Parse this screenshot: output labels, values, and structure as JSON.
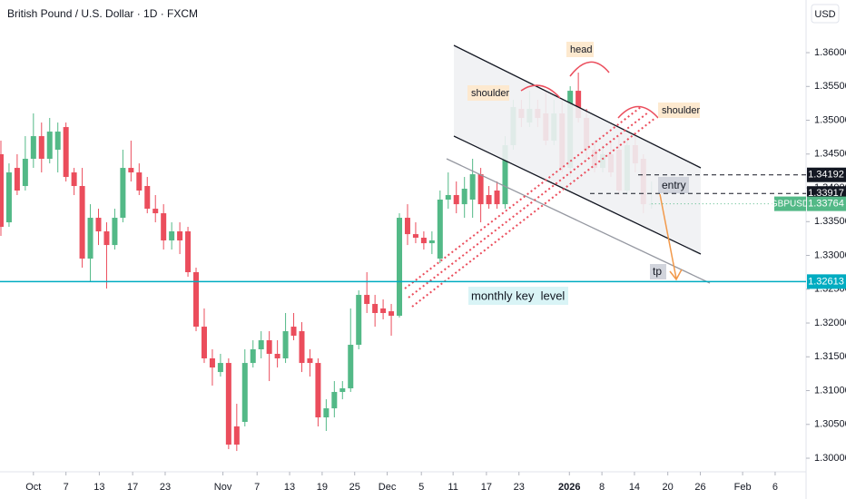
{
  "chart_data": {
    "type": "candlestick",
    "title": "British Pound / U.S. Dollar · 1D · FXCM",
    "currency": "USD",
    "symbol": "GBPUSD",
    "up_color": "#53b987",
    "down_color": "#eb4d5c",
    "ohlc": [
      [
        1.34497,
        1.34698,
        1.33289,
        1.33423
      ],
      [
        1.3349,
        1.34362,
        1.33423,
        1.34228
      ],
      [
        1.34295,
        1.34497,
        1.33893,
        1.3396
      ],
      [
        1.34027,
        1.34765,
        1.3396,
        1.3443
      ],
      [
        1.3443,
        1.35101,
        1.34295,
        1.34765
      ],
      [
        1.34765,
        1.34966,
        1.34228,
        1.3443
      ],
      [
        1.3443,
        1.35034,
        1.34362,
        1.34832
      ],
      [
        1.34564,
        1.34966,
        1.34228,
        1.34832
      ],
      [
        1.34899,
        1.34966,
        1.34094,
        1.34161
      ],
      [
        1.34228,
        1.34295,
        1.33893,
        1.34027
      ],
      [
        1.34027,
        1.34295,
        1.32819,
        1.32953
      ],
      [
        1.32953,
        1.33758,
        1.32617,
        1.33557
      ],
      [
        1.33557,
        1.33691,
        1.33154,
        1.33356
      ],
      [
        1.33356,
        1.3349,
        1.3251,
        1.33154
      ],
      [
        1.33154,
        1.33691,
        1.33087,
        1.33557
      ],
      [
        1.33557,
        1.34564,
        1.3349,
        1.34295
      ],
      [
        1.34295,
        1.34698,
        1.34094,
        1.34228
      ],
      [
        1.34228,
        1.34362,
        1.33893,
        1.3396
      ],
      [
        1.34027,
        1.34161,
        1.33624,
        1.33691
      ],
      [
        1.33691,
        1.33893,
        1.3349,
        1.33624
      ],
      [
        1.33624,
        1.33758,
        1.33087,
        1.33222
      ],
      [
        1.33222,
        1.3349,
        1.33087,
        1.33356
      ],
      [
        1.33356,
        1.3349,
        1.3302,
        1.33222
      ],
      [
        1.33356,
        1.33423,
        1.32685,
        1.32752
      ],
      [
        1.32752,
        1.32819,
        1.31879,
        1.31946
      ],
      [
        1.31946,
        1.32215,
        1.31409,
        1.31477
      ],
      [
        1.31477,
        1.31611,
        1.31074,
        1.31342
      ],
      [
        1.31275,
        1.31544,
        1.31208,
        1.31409
      ],
      [
        1.31409,
        1.31477,
        1.30134,
        1.30201
      ],
      [
        1.3047,
        1.30805,
        1.30107,
        1.30201
      ],
      [
        1.30537,
        1.31611,
        1.3047,
        1.31409
      ],
      [
        1.31409,
        1.31745,
        1.31342,
        1.31611
      ],
      [
        1.31611,
        1.31879,
        1.31477,
        1.31745
      ],
      [
        1.31745,
        1.31879,
        1.31141,
        1.31544
      ],
      [
        1.31544,
        1.31745,
        1.31342,
        1.31477
      ],
      [
        1.31477,
        1.32148,
        1.31409,
        1.31879
      ],
      [
        1.31946,
        1.32148,
        1.31745,
        1.31812
      ],
      [
        1.31879,
        1.32013,
        1.31275,
        1.31409
      ],
      [
        1.31477,
        1.31611,
        1.31208,
        1.31409
      ],
      [
        1.31409,
        1.31477,
        1.3047,
        1.30604
      ],
      [
        1.30604,
        1.30872,
        1.30403,
        1.30738
      ],
      [
        1.30738,
        1.31141,
        1.30604,
        1.3098
      ],
      [
        1.3098,
        1.31141,
        1.30872,
        1.31034
      ],
      [
        1.31034,
        1.32215,
        1.3098,
        1.31678
      ],
      [
        1.31678,
        1.32483,
        1.31611,
        1.32416
      ],
      [
        1.32416,
        1.32752,
        1.32148,
        1.32282
      ],
      [
        1.32282,
        1.32416,
        1.31946,
        1.32148
      ],
      [
        1.32215,
        1.32349,
        1.32054,
        1.32148
      ],
      [
        1.32174,
        1.32282,
        1.31812,
        1.32107
      ],
      [
        1.32107,
        1.33624,
        1.32081,
        1.33557
      ],
      [
        1.33557,
        1.33758,
        1.33154,
        1.33315
      ],
      [
        1.33315,
        1.3349,
        1.33181,
        1.33262
      ],
      [
        1.33262,
        1.33356,
        1.33087,
        1.33181
      ],
      [
        1.33181,
        1.33356,
        1.3302,
        1.33222
      ],
      [
        1.32953,
        1.3396,
        1.32886,
        1.33826
      ],
      [
        1.33826,
        1.34228,
        1.33691,
        1.33893
      ],
      [
        1.33893,
        1.34094,
        1.33624,
        1.33758
      ],
      [
        1.33758,
        1.34161,
        1.33557,
        1.33987
      ],
      [
        1.33826,
        1.3443,
        1.33557,
        1.34201
      ],
      [
        1.34201,
        1.34295,
        1.3349,
        1.33758
      ],
      [
        1.33893,
        1.34027,
        1.33691,
        1.33758
      ],
      [
        1.3396,
        1.34094,
        1.33691,
        1.33758
      ],
      [
        1.33758,
        1.34765,
        1.33691,
        1.34631
      ],
      [
        1.34631,
        1.35302,
        1.34564,
        1.35195
      ],
      [
        1.35168,
        1.35302,
        1.34899,
        1.35034
      ],
      [
        1.34966,
        1.35436,
        1.34899,
        1.35168
      ],
      [
        1.35168,
        1.35302,
        1.34899,
        1.35034
      ],
      [
        1.35101,
        1.35436,
        1.34631,
        1.34698
      ],
      [
        1.34698,
        1.35302,
        1.34631,
        1.35101
      ],
      [
        1.35101,
        1.35302,
        1.34228,
        1.34295
      ],
      [
        1.34295,
        1.35503,
        1.34161,
        1.35436
      ],
      [
        1.35436,
        1.35705,
        1.34966,
        1.35034
      ],
      [
        1.35034,
        1.35168,
        1.3443,
        1.34564
      ],
      [
        1.34564,
        1.34698,
        1.34228,
        1.34295
      ],
      [
        1.34295,
        1.34631,
        1.34228,
        1.34497
      ],
      [
        1.34497,
        1.34698,
        1.34161,
        1.34228
      ],
      [
        1.34564,
        1.34765,
        1.33893,
        1.3396
      ],
      [
        1.3396,
        1.34698,
        1.33893,
        1.34631
      ],
      [
        1.34631,
        1.34765,
        1.34228,
        1.34362
      ],
      [
        1.3443,
        1.34497,
        1.33624,
        1.33758
      ],
      [
        1.33758,
        1.34094,
        1.33691,
        1.33764
      ]
    ],
    "xlim": [
      -0.11,
      99
    ],
    "xticks": [
      {
        "value": 4,
        "label": "Oct"
      },
      {
        "value": 8,
        "label": "7"
      },
      {
        "value": 12.1,
        "label": "13"
      },
      {
        "value": 16.2,
        "label": "17"
      },
      {
        "value": 20.2,
        "label": "23"
      },
      {
        "value": 27.3,
        "label": "Nov"
      },
      {
        "value": 31.5,
        "label": "7"
      },
      {
        "value": 35.5,
        "label": "13"
      },
      {
        "value": 39.5,
        "label": "19"
      },
      {
        "value": 43.5,
        "label": "25"
      },
      {
        "value": 47.5,
        "label": "Dec"
      },
      {
        "value": 51.7,
        "label": "5"
      },
      {
        "value": 55.6,
        "label": "11"
      },
      {
        "value": 59.7,
        "label": "17"
      },
      {
        "value": 63.7,
        "label": "23"
      },
      {
        "value": 69.9,
        "label": "2026"
      },
      {
        "value": 73.9,
        "label": "8"
      },
      {
        "value": 77.9,
        "label": "14"
      },
      {
        "value": 82,
        "label": "20"
      },
      {
        "value": 86,
        "label": "26"
      },
      {
        "value": 91.2,
        "label": "Feb"
      },
      {
        "value": 95.2,
        "label": "6"
      }
    ],
    "ylim": [
      1.29799,
      1.36779
    ],
    "yticks": [
      {
        "value": 1.3,
        "label": "1.30000"
      },
      {
        "value": 1.305,
        "label": "1.30500"
      },
      {
        "value": 1.31,
        "label": "1.31000"
      },
      {
        "value": 1.315,
        "label": "1.31500"
      },
      {
        "value": 1.32,
        "label": "1.32000"
      },
      {
        "value": 1.325,
        "label": "1.32500"
      },
      {
        "value": 1.33,
        "label": "1.33000"
      },
      {
        "value": 1.335,
        "label": "1.33500"
      },
      {
        "value": 1.34,
        "label": "1.34000"
      },
      {
        "value": 1.345,
        "label": "1.34500"
      },
      {
        "value": 1.35,
        "label": "1.35000"
      },
      {
        "value": 1.355,
        "label": "1.35500"
      },
      {
        "value": 1.36,
        "label": "1.36000"
      }
    ],
    "levels": [
      {
        "value": 1.34192,
        "color": "#131722",
        "style": "dashed"
      },
      {
        "value": 1.33917,
        "color": "#131722",
        "style": "dashed"
      },
      {
        "value": 1.32613,
        "color": "#00acc1",
        "style": "solid"
      }
    ],
    "annotations": [
      "shoulder",
      "head",
      "shoulder",
      "entry",
      "tp",
      "monthly key  level"
    ]
  }
}
